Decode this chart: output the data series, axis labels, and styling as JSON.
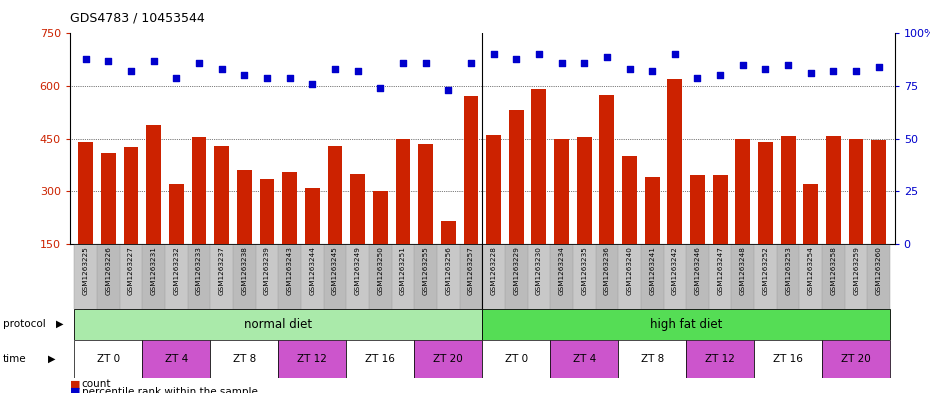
{
  "title": "GDS4783 / 10453544",
  "samples": [
    "GSM1263225",
    "GSM1263226",
    "GSM1263227",
    "GSM1263231",
    "GSM1263232",
    "GSM1263233",
    "GSM1263237",
    "GSM1263238",
    "GSM1263239",
    "GSM1263243",
    "GSM1263244",
    "GSM1263245",
    "GSM1263249",
    "GSM1263250",
    "GSM1263251",
    "GSM1263255",
    "GSM1263256",
    "GSM1263257",
    "GSM1263228",
    "GSM1263229",
    "GSM1263230",
    "GSM1263234",
    "GSM1263235",
    "GSM1263236",
    "GSM1263240",
    "GSM1263241",
    "GSM1263242",
    "GSM1263246",
    "GSM1263247",
    "GSM1263248",
    "GSM1263252",
    "GSM1263253",
    "GSM1263254",
    "GSM1263258",
    "GSM1263259",
    "GSM1263260"
  ],
  "bar_values": [
    440,
    410,
    425,
    490,
    320,
    455,
    430,
    360,
    335,
    355,
    310,
    430,
    350,
    300,
    450,
    435,
    215,
    570,
    460,
    530,
    590,
    450,
    455,
    575,
    400,
    340,
    620,
    345,
    345,
    450,
    440,
    458,
    320,
    458,
    450,
    445
  ],
  "percentile_values": [
    88,
    87,
    82,
    87,
    79,
    86,
    83,
    80,
    79,
    79,
    76,
    83,
    82,
    74,
    86,
    86,
    73,
    86,
    90,
    88,
    90,
    86,
    86,
    89,
    83,
    82,
    90,
    79,
    80,
    85,
    83,
    85,
    81,
    82,
    82,
    84
  ],
  "bar_color": "#cc2200",
  "dot_color": "#0000cc",
  "ylim_left": [
    150,
    750
  ],
  "yticks_left": [
    150,
    300,
    450,
    600,
    750
  ],
  "ylim_right": [
    0,
    100
  ],
  "yticks_right": [
    0,
    25,
    50,
    75,
    100
  ],
  "grid_values": [
    300,
    450,
    600
  ],
  "protocol_normal": "normal diet",
  "protocol_high": "high fat diet",
  "protocol_normal_color": "#aaeaaa",
  "protocol_high_color": "#55dd55",
  "time_labels": [
    "ZT 0",
    "ZT 4",
    "ZT 8",
    "ZT 12",
    "ZT 16",
    "ZT 20"
  ],
  "time_color_white": "#ffffff",
  "time_color_magenta": "#cc55cc",
  "legend_count_color": "#cc2200",
  "legend_pct_color": "#0000cc",
  "bg_label_color": "#c8c8c8"
}
